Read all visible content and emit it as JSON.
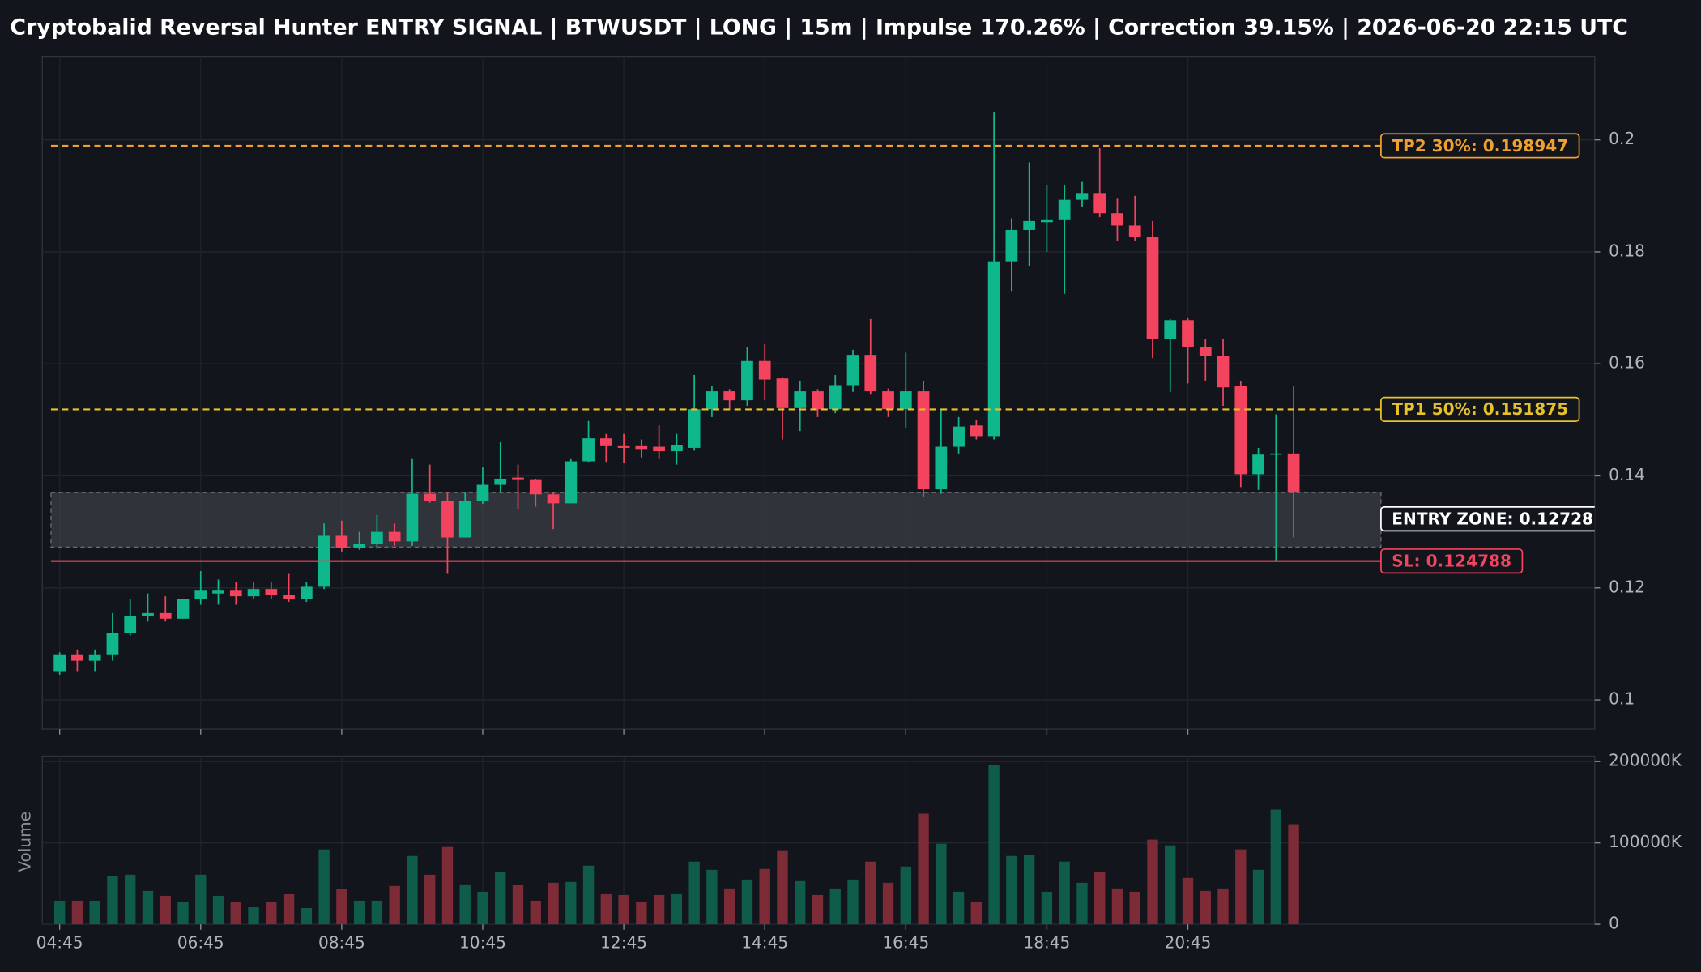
{
  "chart_data": {
    "type": "candlestick",
    "title": "Cryptobalid Reversal Hunter ENTRY SIGNAL | BTWUSDT | LONG | 15m | Impulse 170.26% | Correction 39.15% | 2026-06-20 22:15 UTC",
    "categories": [
      "04:45",
      null,
      null,
      null,
      null,
      null,
      null,
      null,
      "06:45",
      null,
      null,
      null,
      null,
      null,
      null,
      null,
      "08:45",
      null,
      null,
      null,
      null,
      null,
      null,
      null,
      "10:45",
      null,
      null,
      null,
      null,
      null,
      null,
      null,
      "12:45",
      null,
      null,
      null,
      null,
      null,
      null,
      null,
      "14:45",
      null,
      null,
      null,
      null,
      null,
      null,
      null,
      "16:45",
      null,
      null,
      null,
      null,
      null,
      null,
      null,
      "18:45",
      null,
      null,
      null,
      null,
      null,
      null,
      null,
      "20:45",
      null,
      null,
      null,
      null,
      null,
      null
    ],
    "open": [
      0.105,
      0.108,
      0.107,
      0.108,
      0.112,
      0.115,
      0.1155,
      0.1145,
      0.118,
      0.119,
      0.1195,
      0.1185,
      0.1198,
      0.1188,
      0.118,
      0.1202,
      0.1293,
      0.1272,
      0.1278,
      0.13,
      0.1283,
      0.1368,
      0.1355,
      0.129,
      0.1355,
      0.1384,
      0.1397,
      0.1394,
      0.1367,
      0.1351,
      0.1426,
      0.1467,
      0.1453,
      0.1453,
      0.1452,
      0.1444,
      0.145,
      0.1519,
      0.1551,
      0.1535,
      0.1605,
      0.1574,
      0.1521,
      0.1551,
      0.1519,
      0.1562,
      0.1616,
      0.1551,
      0.1519,
      0.1551,
      0.1376,
      0.1452,
      0.149,
      0.1471,
      0.1783,
      0.1839,
      0.1853,
      0.1858,
      0.1893,
      0.1905,
      0.1869,
      0.1847,
      0.1826,
      0.1645,
      0.1678,
      0.163,
      0.1614,
      0.156,
      0.1403,
      0.1438,
      0.144
    ],
    "high": [
      0.1085,
      0.109,
      0.109,
      0.1155,
      0.118,
      0.119,
      0.1185,
      0.118,
      0.123,
      0.1215,
      0.121,
      0.121,
      0.121,
      0.1225,
      0.121,
      0.1315,
      0.132,
      0.13,
      0.133,
      0.1315,
      0.143,
      0.142,
      0.137,
      0.137,
      0.1415,
      0.146,
      0.142,
      0.1395,
      0.137,
      0.143,
      0.1498,
      0.1475,
      0.1475,
      0.1465,
      0.149,
      0.1475,
      0.158,
      0.156,
      0.1555,
      0.163,
      0.1635,
      0.1575,
      0.157,
      0.1555,
      0.158,
      0.1625,
      0.168,
      0.1556,
      0.162,
      0.157,
      0.152,
      0.1505,
      0.15,
      0.205,
      0.186,
      0.196,
      0.192,
      0.192,
      0.1925,
      0.1985,
      0.1895,
      0.19,
      0.1855,
      0.168,
      0.1682,
      0.1645,
      0.1645,
      0.157,
      0.145,
      0.151,
      0.156
    ],
    "low": [
      0.1045,
      0.105,
      0.105,
      0.107,
      0.1115,
      0.114,
      0.114,
      0.1145,
      0.117,
      0.117,
      0.117,
      0.118,
      0.118,
      0.1175,
      0.1175,
      0.1198,
      0.1265,
      0.1268,
      0.127,
      0.1275,
      0.1275,
      0.1352,
      0.1225,
      0.129,
      0.135,
      0.137,
      0.134,
      0.1345,
      0.1305,
      0.1351,
      0.1425,
      0.1425,
      0.1423,
      0.1433,
      0.143,
      0.142,
      0.1445,
      0.1505,
      0.152,
      0.1525,
      0.1535,
      0.1465,
      0.148,
      0.1505,
      0.1512,
      0.155,
      0.1545,
      0.1505,
      0.1485,
      0.1362,
      0.1368,
      0.144,
      0.1465,
      0.1465,
      0.173,
      0.1775,
      0.18,
      0.1725,
      0.188,
      0.1862,
      0.182,
      0.182,
      0.161,
      0.155,
      0.1565,
      0.157,
      0.1525,
      0.138,
      0.1375,
      0.1247,
      0.129
    ],
    "close": [
      0.108,
      0.107,
      0.108,
      0.112,
      0.115,
      0.1155,
      0.1145,
      0.118,
      0.1195,
      0.1195,
      0.1185,
      0.1198,
      0.1188,
      0.118,
      0.1202,
      0.1293,
      0.1272,
      0.1278,
      0.13,
      0.1283,
      0.1368,
      0.1355,
      0.129,
      0.1355,
      0.1384,
      0.1395,
      0.1394,
      0.1367,
      0.1351,
      0.1426,
      0.1467,
      0.1453,
      0.145,
      0.1448,
      0.1444,
      0.1455,
      0.1519,
      0.1551,
      0.1535,
      0.1605,
      0.1572,
      0.1521,
      0.1551,
      0.1519,
      0.1562,
      0.1616,
      0.1551,
      0.1519,
      0.1551,
      0.1376,
      0.1452,
      0.1488,
      0.1471,
      0.1783,
      0.1839,
      0.1855,
      0.1858,
      0.1893,
      0.1905,
      0.1869,
      0.1847,
      0.1826,
      0.1645,
      0.1678,
      0.163,
      0.1614,
      0.1558,
      0.1403,
      0.1438,
      0.144,
      0.137
    ],
    "up_color": "#0fb78d",
    "down_color": "#f4435e",
    "ylim": [
      0.0948,
      0.2149
    ],
    "yticks": [
      0.1,
      0.12,
      0.14,
      0.16,
      0.18,
      0.2
    ],
    "grid": true,
    "levels": [
      {
        "label": "TP2 30%: 0.198947",
        "value": 0.198947,
        "color": "#f0a030",
        "style": "dashed"
      },
      {
        "label": "TP1 50%: 0.151875",
        "value": 0.151875,
        "color": "#e8c22a",
        "style": "dashed"
      },
      {
        "label": "SL: 0.124788",
        "value": 0.124788,
        "color": "#f4435e",
        "style": "solid"
      }
    ],
    "entry_zone": {
      "label": "ENTRY ZONE: 0.12728",
      "low": 0.12728,
      "high": 0.137,
      "color": "#ffffff"
    },
    "volume": {
      "label": "Volume",
      "up_color": "#0e5c49",
      "down_color": "#7c2b37",
      "values": [
        29000,
        29000,
        29000,
        59000,
        61000,
        41000,
        35000,
        28000,
        61000,
        35000,
        28000,
        21000,
        28000,
        37000,
        20000,
        92000,
        43000,
        29000,
        29000,
        47000,
        84000,
        61000,
        95000,
        49000,
        40000,
        64000,
        48000,
        29000,
        51000,
        52000,
        72000,
        37000,
        36000,
        28000,
        36000,
        37000,
        77000,
        67000,
        44000,
        55000,
        68000,
        91000,
        53000,
        36000,
        44000,
        55000,
        77000,
        51000,
        71000,
        136000,
        99000,
        40000,
        28000,
        196000,
        84000,
        85000,
        40000,
        77000,
        51000,
        64000,
        44000,
        40000,
        104000,
        97000,
        57000,
        41000,
        44000,
        92000,
        67000,
        141000,
        123000
      ],
      "ylim": [
        0,
        206700
      ],
      "yticks": [
        0,
        {
          "value": 100000,
          "label": "100000K"
        },
        {
          "value": 200000,
          "label": "200000K"
        }
      ]
    }
  }
}
